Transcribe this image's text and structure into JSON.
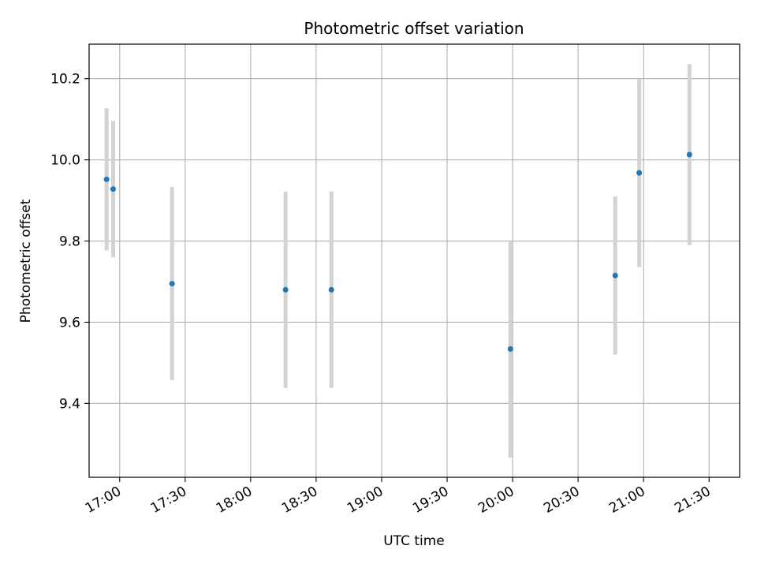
{
  "chart_data": {
    "type": "scatter",
    "title": "Photometric offset variation",
    "xlabel": "UTC time",
    "ylabel": "Photometric offset",
    "grid": true,
    "x_ticks": [
      "17:00",
      "17:30",
      "18:00",
      "18:30",
      "19:00",
      "19:30",
      "20:00",
      "20:30",
      "21:00",
      "21:30"
    ],
    "y_ticks": [
      "9.4",
      "9.6",
      "9.8",
      "10.0",
      "10.2"
    ],
    "xlim": [
      "16:46",
      "21:44"
    ],
    "ylim": [
      9.218,
      10.285
    ],
    "points": [
      {
        "x": "16:54",
        "y": 9.952,
        "err": 0.175
      },
      {
        "x": "16:57",
        "y": 9.928,
        "err": 0.168
      },
      {
        "x": "17:24",
        "y": 9.695,
        "err": 0.238
      },
      {
        "x": "18:16",
        "y": 9.68,
        "err": 0.242
      },
      {
        "x": "18:37",
        "y": 9.68,
        "err": 0.242
      },
      {
        "x": "19:59",
        "y": 9.534,
        "err": 0.268
      },
      {
        "x": "20:47",
        "y": 9.715,
        "err": 0.195
      },
      {
        "x": "20:58",
        "y": 9.968,
        "err": 0.232
      },
      {
        "x": "21:21",
        "y": 10.013,
        "err": 0.223
      }
    ],
    "point_color": "#1f77b4",
    "errorbar_color": "#d3d3d3"
  }
}
